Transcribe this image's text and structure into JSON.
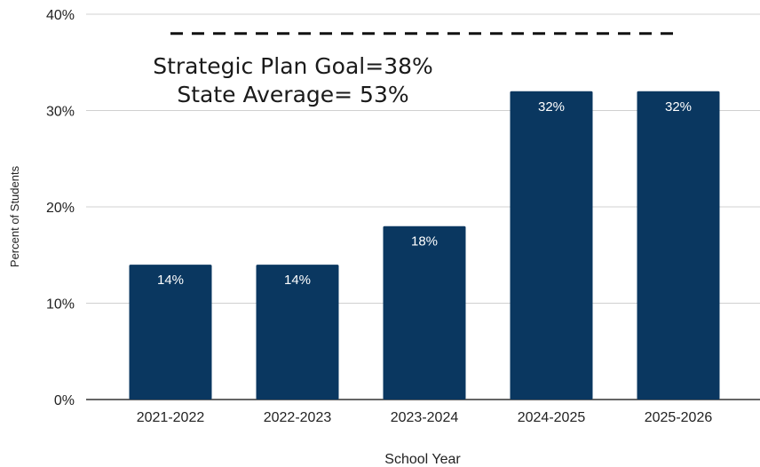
{
  "chart_data": {
    "type": "bar",
    "categories": [
      "2021-2022",
      "2022-2023",
      "2023-2024",
      "2024-2025",
      "2025-2026"
    ],
    "values": [
      14,
      14,
      18,
      32,
      32
    ],
    "value_labels": [
      "14%",
      "14%",
      "18%",
      "32%",
      "32%"
    ],
    "ylim": [
      0,
      40
    ],
    "yticks": [
      0,
      10,
      20,
      30,
      40
    ],
    "ytick_labels": [
      "0%",
      "10%",
      "20%",
      "30%",
      "40%"
    ],
    "xlabel": "School Year",
    "ylabel": "Percent of Students",
    "grid": true,
    "goal_line": {
      "value": 38,
      "style": "dashed"
    },
    "annotations": [
      "Strategic Plan Goal=38%",
      "State Average= 53%"
    ],
    "colors": {
      "bar": "#0a3760",
      "grid": "#d0d0d0",
      "goal_line": "#111111"
    }
  }
}
